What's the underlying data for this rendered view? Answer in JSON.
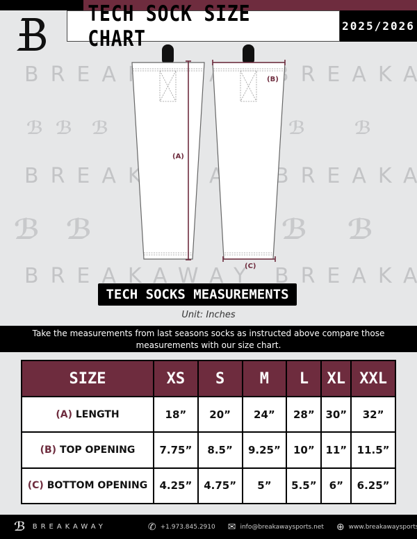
{
  "header": {
    "title": "TECH SOCK SIZE CHART",
    "season": "2025/2026",
    "brand_logo": "B"
  },
  "watermark": {
    "text": "BREAKAWAY",
    "logo": "B"
  },
  "diagram": {
    "label_a": "(A)",
    "label_b": "(B)",
    "label_c": "(C)"
  },
  "section_title": "TECH SOCKS MEASUREMENTS",
  "unit": "Unit: Inches",
  "instructions": "Take the measurements from last seasons socks as instructed above compare those measurements  with our size chart.",
  "table": {
    "headers": [
      "SIZE",
      "XS",
      "S",
      "M",
      "L",
      "XL",
      "XXL"
    ],
    "rows": [
      {
        "key": "(A)",
        "label": "LENGTH",
        "values": [
          "18”",
          "20”",
          "24”",
          "28”",
          "30”",
          "32”"
        ]
      },
      {
        "key": "(B)",
        "label": "TOP OPENING",
        "values": [
          "7.75”",
          "8.5”",
          "9.25”",
          "10”",
          "11”",
          "11.5”"
        ]
      },
      {
        "key": "(C)",
        "label": "BOTTOM OPENING",
        "values": [
          "4.25”",
          "4.75”",
          "5”",
          "5.5”",
          "6”",
          "6.25”"
        ]
      }
    ]
  },
  "footer": {
    "brand": "BREAKAWAY",
    "phone": "+1.973.845.2910",
    "email": "info@breakawaysports.net",
    "website": "www.breakawaysports.net"
  },
  "colors": {
    "maroon": "#6e2c3e",
    "black": "#000000",
    "background": "#e6e7e8"
  }
}
